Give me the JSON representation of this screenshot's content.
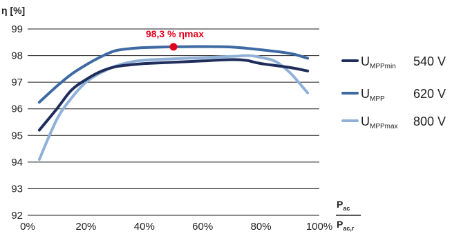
{
  "chart_data": {
    "type": "line",
    "ylabel": "η [%]",
    "xlabel_num": "P",
    "xlabel_num_sub": "ac",
    "xlabel_den": "P",
    "xlabel_den_sub": "ac,r",
    "xlim": [
      0,
      100
    ],
    "ylim": [
      92,
      99
    ],
    "x_ticks": [
      "0%",
      "20%",
      "40%",
      "60%",
      "80%",
      "100%"
    ],
    "y_ticks": [
      "92",
      "93",
      "94",
      "95",
      "96",
      "97",
      "98",
      "99"
    ],
    "grid": "horizontal",
    "legend_position": "right",
    "series": [
      {
        "label_main": "U",
        "label_sub": "MPPmin",
        "value_text": "540 V",
        "color": "#1f2d5c",
        "points": [
          [
            4,
            95.2
          ],
          [
            10,
            96.0
          ],
          [
            15,
            96.7
          ],
          [
            20,
            97.1
          ],
          [
            25,
            97.4
          ],
          [
            30,
            97.58
          ],
          [
            35,
            97.65
          ],
          [
            40,
            97.7
          ],
          [
            50,
            97.75
          ],
          [
            60,
            97.8
          ],
          [
            70,
            97.85
          ],
          [
            75,
            97.82
          ],
          [
            80,
            97.7
          ],
          [
            90,
            97.55
          ],
          [
            96,
            97.42
          ]
        ]
      },
      {
        "label_main": "U",
        "label_sub": "MPP",
        "value_text": "620 V",
        "color": "#3e6aa3",
        "points": [
          [
            4,
            96.25
          ],
          [
            10,
            96.85
          ],
          [
            15,
            97.3
          ],
          [
            20,
            97.65
          ],
          [
            25,
            97.95
          ],
          [
            30,
            98.18
          ],
          [
            35,
            98.26
          ],
          [
            40,
            98.3
          ],
          [
            50,
            98.33
          ],
          [
            60,
            98.34
          ],
          [
            70,
            98.32
          ],
          [
            80,
            98.22
          ],
          [
            90,
            98.08
          ],
          [
            96,
            97.9
          ]
        ]
      },
      {
        "label_main": "U",
        "label_sub": "MPPmax",
        "value_text": "800 V",
        "color": "#8fb1d8",
        "points": [
          [
            4,
            94.1
          ],
          [
            10,
            95.6
          ],
          [
            15,
            96.4
          ],
          [
            20,
            97.0
          ],
          [
            25,
            97.35
          ],
          [
            30,
            97.6
          ],
          [
            35,
            97.75
          ],
          [
            40,
            97.83
          ],
          [
            50,
            97.88
          ],
          [
            60,
            97.92
          ],
          [
            70,
            97.97
          ],
          [
            76,
            98.0
          ],
          [
            80,
            97.93
          ],
          [
            85,
            97.78
          ],
          [
            90,
            97.35
          ],
          [
            96,
            96.6
          ]
        ]
      }
    ],
    "annotation": {
      "text": "98,3 % ηmax",
      "x": 50,
      "y": 98.33,
      "color": "#e2001a"
    }
  }
}
